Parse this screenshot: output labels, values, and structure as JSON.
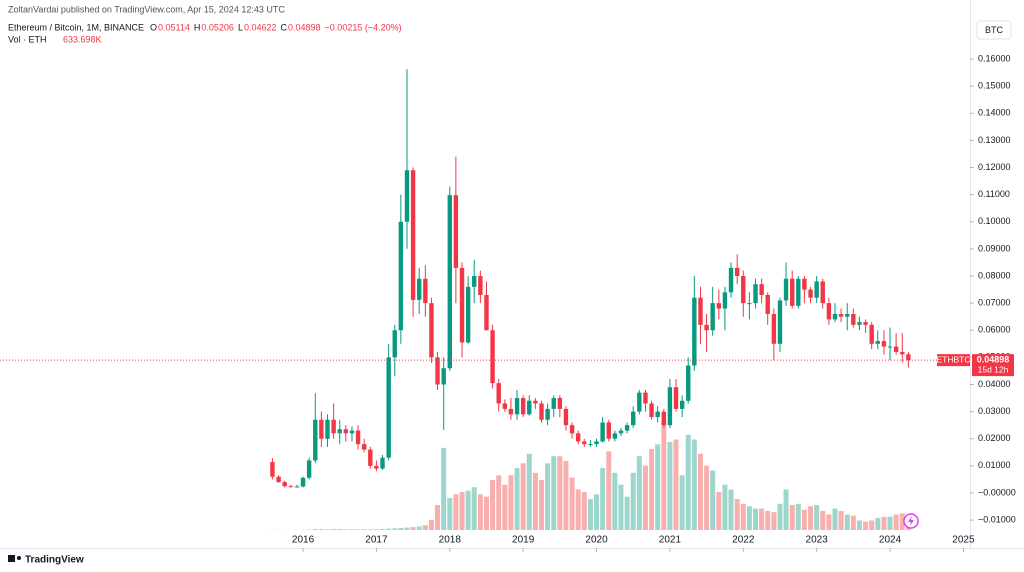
{
  "header": {
    "publisher": "ZoltanVardai published on TradingView.com, Apr 15, 2024 12:43 UTC",
    "brand": "TradingView"
  },
  "chart_data": {
    "type": "candlestick",
    "symbol_title": "Ethereum / Bitcoin, 1M, BINANCE",
    "ohlc_letters": [
      "O",
      "H",
      "L",
      "C"
    ],
    "change_label": "−0.00215 (−4.20%)",
    "volume_title": "Vol · ETH",
    "volume_label": "633.698K",
    "currency_label": "BTC",
    "price_tag": "ETHBTC",
    "countdown": "15d 12h",
    "up_color": "#089981",
    "down_color": "#f23645",
    "up_volume_color": "#92d2c7",
    "down_volume_color": "#f7a6a5",
    "x": [
      2015.583,
      2015.667,
      2015.75,
      2015.833,
      2015.917,
      2016.0,
      2016.083,
      2016.167,
      2016.25,
      2016.333,
      2016.417,
      2016.5,
      2016.583,
      2016.667,
      2016.75,
      2016.833,
      2016.917,
      2017.0,
      2017.083,
      2017.167,
      2017.25,
      2017.333,
      2017.417,
      2017.5,
      2017.583,
      2017.667,
      2017.75,
      2017.833,
      2017.917,
      2018.0,
      2018.083,
      2018.167,
      2018.25,
      2018.333,
      2018.417,
      2018.5,
      2018.583,
      2018.667,
      2018.75,
      2018.833,
      2018.917,
      2019.0,
      2019.083,
      2019.167,
      2019.25,
      2019.333,
      2019.417,
      2019.5,
      2019.583,
      2019.667,
      2019.75,
      2019.833,
      2019.917,
      2020.0,
      2020.083,
      2020.167,
      2020.25,
      2020.333,
      2020.417,
      2020.5,
      2020.583,
      2020.667,
      2020.75,
      2020.833,
      2020.917,
      2021.0,
      2021.083,
      2021.167,
      2021.25,
      2021.333,
      2021.417,
      2021.5,
      2021.583,
      2021.667,
      2021.75,
      2021.833,
      2021.917,
      2022.0,
      2022.083,
      2022.167,
      2022.25,
      2022.333,
      2022.417,
      2022.5,
      2022.583,
      2022.667,
      2022.75,
      2022.833,
      2022.917,
      2023.0,
      2023.083,
      2023.167,
      2023.25,
      2023.333,
      2023.417,
      2023.5,
      2023.583,
      2023.667,
      2023.75,
      2023.833,
      2023.917,
      2024.0,
      2024.083,
      2024.167,
      2024.25
    ],
    "open": [
      0.0114,
      0.006,
      0.004,
      0.0025,
      0.0023,
      0.0024,
      0.0056,
      0.012,
      0.027,
      0.02,
      0.027,
      0.022,
      0.0235,
      0.022,
      0.023,
      0.018,
      0.016,
      0.01,
      0.009,
      0.013,
      0.05,
      0.06,
      0.1,
      0.119,
      0.0712,
      0.079,
      0.07,
      0.05,
      0.04,
      0.046,
      0.1098,
      0.083,
      0.0555,
      0.076,
      0.08,
      0.073,
      0.06,
      0.0405,
      0.033,
      0.031,
      0.029,
      0.035,
      0.029,
      0.034,
      0.033,
      0.027,
      0.031,
      0.035,
      0.031,
      0.025,
      0.022,
      0.019,
      0.018,
      0.018,
      0.019,
      0.026,
      0.02,
      0.022,
      0.023,
      0.025,
      0.03,
      0.037,
      0.033,
      0.028,
      0.03,
      0.025,
      0.039,
      0.031,
      0.034,
      0.047,
      0.072,
      0.062,
      0.06,
      0.07,
      0.068,
      0.074,
      0.083,
      0.08,
      0.07,
      0.07,
      0.077,
      0.073,
      0.066,
      0.055,
      0.071,
      0.079,
      0.069,
      0.079,
      0.075,
      0.072,
      0.078,
      0.07,
      0.064,
      0.066,
      0.065,
      0.066,
      0.062,
      0.063,
      0.062,
      0.055,
      0.056,
      0.054,
      0.054,
      0.052,
      0.05114
    ],
    "high": [
      0.0128,
      0.0065,
      0.0045,
      0.003,
      0.003,
      0.006,
      0.013,
      0.0368,
      0.03,
      0.029,
      0.033,
      0.027,
      0.025,
      0.0245,
      0.025,
      0.02,
      0.017,
      0.012,
      0.014,
      0.055,
      0.062,
      0.11,
      0.1563,
      0.12,
      0.083,
      0.084,
      0.072,
      0.052,
      0.05,
      0.113,
      0.124,
      0.085,
      0.08,
      0.086,
      0.082,
      0.078,
      0.062,
      0.042,
      0.0345,
      0.035,
      0.038,
      0.036,
      0.036,
      0.035,
      0.034,
      0.033,
      0.036,
      0.036,
      0.032,
      0.026,
      0.023,
      0.02,
      0.0195,
      0.02,
      0.028,
      0.027,
      0.023,
      0.024,
      0.026,
      0.032,
      0.038,
      0.038,
      0.034,
      0.032,
      0.031,
      0.042,
      0.042,
      0.036,
      0.05,
      0.08,
      0.076,
      0.066,
      0.076,
      0.075,
      0.076,
      0.085,
      0.088,
      0.082,
      0.074,
      0.079,
      0.079,
      0.074,
      0.068,
      0.072,
      0.085,
      0.082,
      0.08,
      0.08,
      0.076,
      0.08,
      0.079,
      0.072,
      0.07,
      0.068,
      0.07,
      0.068,
      0.065,
      0.064,
      0.063,
      0.06,
      0.06,
      0.061,
      0.059,
      0.059,
      0.05206
    ],
    "low": [
      0.005,
      0.0038,
      0.002,
      0.002,
      0.002,
      0.002,
      0.005,
      0.011,
      0.017,
      0.017,
      0.02,
      0.018,
      0.019,
      0.019,
      0.016,
      0.015,
      0.009,
      0.008,
      0.0085,
      0.012,
      0.043,
      0.055,
      0.09,
      0.065,
      0.066,
      0.065,
      0.048,
      0.038,
      0.0232,
      0.045,
      0.07,
      0.05,
      0.055,
      0.07,
      0.07,
      0.06,
      0.0385,
      0.03,
      0.03,
      0.027,
      0.027,
      0.028,
      0.0285,
      0.031,
      0.026,
      0.025,
      0.028,
      0.028,
      0.023,
      0.02,
      0.018,
      0.017,
      0.017,
      0.017,
      0.0185,
      0.019,
      0.019,
      0.021,
      0.022,
      0.024,
      0.029,
      0.03,
      0.027,
      0.026,
      0.024,
      0.024,
      0.03,
      0.028,
      0.033,
      0.045,
      0.055,
      0.052,
      0.058,
      0.064,
      0.06,
      0.072,
      0.077,
      0.065,
      0.064,
      0.068,
      0.07,
      0.062,
      0.049,
      0.052,
      0.069,
      0.068,
      0.068,
      0.07,
      0.07,
      0.07,
      0.068,
      0.062,
      0.063,
      0.063,
      0.06,
      0.061,
      0.06,
      0.059,
      0.053,
      0.053,
      0.051,
      0.049,
      0.051,
      0.048,
      0.04622
    ],
    "close": [
      0.006,
      0.004,
      0.0025,
      0.0023,
      0.0024,
      0.0056,
      0.012,
      0.027,
      0.02,
      0.027,
      0.022,
      0.0235,
      0.022,
      0.023,
      0.018,
      0.016,
      0.01,
      0.009,
      0.013,
      0.05,
      0.06,
      0.1,
      0.119,
      0.0712,
      0.079,
      0.07,
      0.05,
      0.04,
      0.046,
      0.1098,
      0.083,
      0.0555,
      0.076,
      0.08,
      0.073,
      0.06,
      0.0405,
      0.033,
      0.031,
      0.029,
      0.035,
      0.029,
      0.034,
      0.033,
      0.027,
      0.031,
      0.035,
      0.031,
      0.025,
      0.022,
      0.019,
      0.018,
      0.018,
      0.019,
      0.026,
      0.02,
      0.022,
      0.023,
      0.025,
      0.03,
      0.037,
      0.033,
      0.028,
      0.03,
      0.025,
      0.039,
      0.031,
      0.034,
      0.047,
      0.072,
      0.062,
      0.06,
      0.07,
      0.068,
      0.074,
      0.083,
      0.08,
      0.07,
      0.07,
      0.077,
      0.073,
      0.066,
      0.055,
      0.071,
      0.079,
      0.069,
      0.079,
      0.075,
      0.072,
      0.078,
      0.07,
      0.064,
      0.066,
      0.065,
      0.066,
      0.062,
      0.063,
      0.062,
      0.055,
      0.056,
      0.054,
      0.054,
      0.052,
      0.05114,
      0.04898
    ],
    "volume": [
      10,
      5,
      5,
      5,
      5,
      10,
      20,
      40,
      40,
      30,
      40,
      40,
      30,
      30,
      30,
      30,
      30,
      30,
      40,
      60,
      70,
      80,
      100,
      120,
      150,
      200,
      420,
      1050,
      3450,
      1340,
      1500,
      1600,
      1650,
      1800,
      1500,
      1400,
      2100,
      2300,
      1900,
      2300,
      2600,
      2800,
      3200,
      2400,
      2100,
      2800,
      3100,
      3100,
      2900,
      2200,
      1700,
      1600,
      1300,
      1500,
      2600,
      3300,
      2400,
      1900,
      1400,
      2400,
      3100,
      2700,
      3400,
      3600,
      4600,
      3700,
      3800,
      2300,
      4000,
      3800,
      3200,
      2700,
      2500,
      1600,
      1900,
      1700,
      1300,
      1100,
      1000,
      900,
      900,
      800,
      750,
      1100,
      1700,
      1050,
      1100,
      850,
      1000,
      1050,
      800,
      650,
      900,
      800,
      650,
      600,
      400,
      350,
      400,
      500,
      550,
      560,
      650,
      700,
      633.698
    ],
    "xlim": [
      2011.87,
      2025.09
    ],
    "xticks": [
      2016,
      2017,
      2018,
      2019,
      2020,
      2021,
      2022,
      2023,
      2024,
      2025
    ],
    "ylim": [
      -0.0155,
      0.1744
    ],
    "yticks": [
      {
        "value": 0.16,
        "label": "0.16000"
      },
      {
        "value": 0.15,
        "label": "0.15000"
      },
      {
        "value": 0.14,
        "label": "0.14000"
      },
      {
        "value": 0.13,
        "label": "0.13000"
      },
      {
        "value": 0.12,
        "label": "0.12000"
      },
      {
        "value": 0.11,
        "label": "0.11000"
      },
      {
        "value": 0.1,
        "label": "0.10000"
      },
      {
        "value": 0.09,
        "label": "0.09000"
      },
      {
        "value": 0.08,
        "label": "0.08000"
      },
      {
        "value": 0.07,
        "label": "0.07000"
      },
      {
        "value": 0.06,
        "label": "0.06000"
      },
      {
        "value": 0.05,
        "label": "0.05000"
      },
      {
        "value": 0.04,
        "label": "0.04000"
      },
      {
        "value": 0.03,
        "label": "0.03000"
      },
      {
        "value": 0.02,
        "label": "0.02000"
      },
      {
        "value": 0.01,
        "label": "0.01000"
      },
      {
        "value": 0,
        "label": "−0.00000"
      },
      {
        "value": -0.01,
        "label": "−0.01000"
      }
    ]
  }
}
